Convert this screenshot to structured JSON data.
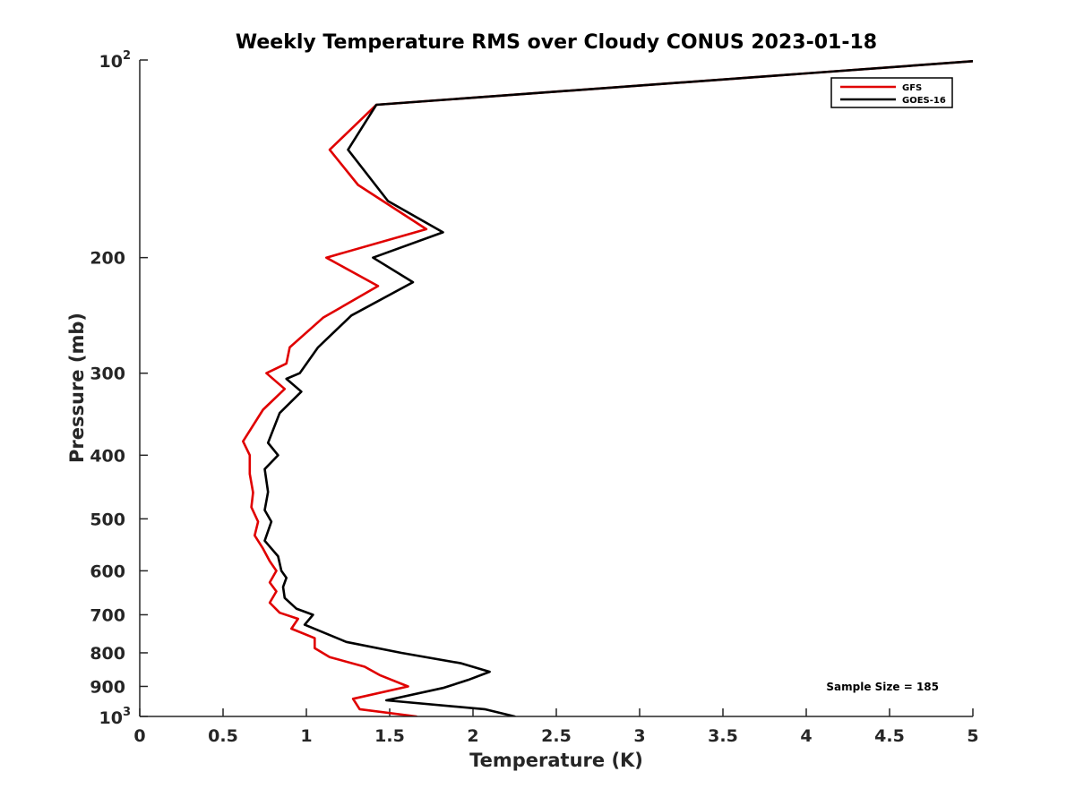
{
  "chart_data": {
    "type": "line",
    "title": "Weekly Temperature RMS over Cloudy CONUS 2023-01-18",
    "xlabel": "Temperature (K)",
    "ylabel": "Pressure (mb)",
    "xlim": [
      0,
      5
    ],
    "ylim": [
      100,
      1000
    ],
    "y_scale": "log",
    "y_reversed": true,
    "x_ticks": [
      0,
      0.5,
      1,
      1.5,
      2,
      2.5,
      3,
      3.5,
      4,
      4.5,
      5
    ],
    "x_tick_labels": [
      "0",
      "0.5",
      "1",
      "1.5",
      "2",
      "2.5",
      "3",
      "3.5",
      "4",
      "4.5",
      "5"
    ],
    "y_ticks": [
      200,
      300,
      400,
      500,
      600,
      700,
      800,
      900
    ],
    "y_tick_labels": [
      "200",
      "300",
      "400",
      "500",
      "600",
      "700",
      "800",
      "900"
    ],
    "y_end_labels": [
      {
        "value": 100,
        "base": "10",
        "exp": "2"
      },
      {
        "value": 1000,
        "base": "10",
        "exp": "3"
      }
    ],
    "grid": false,
    "legend_position": "top-right",
    "annotation": "Sample Size = 185",
    "series": [
      {
        "name": "GFS",
        "color": "#e00000",
        "points": [
          [
            5.1,
            100
          ],
          [
            1.42,
            117
          ],
          [
            1.14,
            137
          ],
          [
            1.31,
            155
          ],
          [
            1.72,
            181
          ],
          [
            1.12,
            200
          ],
          [
            1.43,
            221
          ],
          [
            1.1,
            247
          ],
          [
            0.9,
            274
          ],
          [
            0.88,
            290
          ],
          [
            0.76,
            300
          ],
          [
            0.87,
            317
          ],
          [
            0.74,
            341
          ],
          [
            0.62,
            381
          ],
          [
            0.66,
            400
          ],
          [
            0.66,
            427
          ],
          [
            0.68,
            456
          ],
          [
            0.67,
            480
          ],
          [
            0.71,
            505
          ],
          [
            0.69,
            530
          ],
          [
            0.74,
            555
          ],
          [
            0.78,
            580
          ],
          [
            0.82,
            600
          ],
          [
            0.78,
            625
          ],
          [
            0.82,
            645
          ],
          [
            0.78,
            671
          ],
          [
            0.84,
            695
          ],
          [
            0.95,
            710
          ],
          [
            0.91,
            735
          ],
          [
            1.05,
            760
          ],
          [
            1.05,
            787
          ],
          [
            1.14,
            812
          ],
          [
            1.35,
            840
          ],
          [
            1.44,
            865
          ],
          [
            1.61,
            900
          ],
          [
            1.28,
            940
          ],
          [
            1.32,
            975
          ],
          [
            1.66,
            1000
          ]
        ]
      },
      {
        "name": "GOES-16",
        "color": "#000000",
        "points": [
          [
            5.1,
            100
          ],
          [
            1.42,
            117
          ],
          [
            1.25,
            137
          ],
          [
            1.49,
            164
          ],
          [
            1.82,
            183
          ],
          [
            1.4,
            200
          ],
          [
            1.64,
            218
          ],
          [
            1.27,
            245
          ],
          [
            1.07,
            274
          ],
          [
            0.96,
            300
          ],
          [
            0.88,
            306
          ],
          [
            0.97,
            320
          ],
          [
            0.84,
            345
          ],
          [
            0.77,
            383
          ],
          [
            0.83,
            400
          ],
          [
            0.75,
            420
          ],
          [
            0.77,
            455
          ],
          [
            0.75,
            485
          ],
          [
            0.79,
            505
          ],
          [
            0.75,
            540
          ],
          [
            0.83,
            570
          ],
          [
            0.85,
            600
          ],
          [
            0.88,
            615
          ],
          [
            0.86,
            635
          ],
          [
            0.87,
            660
          ],
          [
            0.94,
            685
          ],
          [
            1.04,
            700
          ],
          [
            0.99,
            725
          ],
          [
            1.24,
            770
          ],
          [
            1.57,
            800
          ],
          [
            1.93,
            830
          ],
          [
            2.1,
            855
          ],
          [
            1.97,
            880
          ],
          [
            1.82,
            905
          ],
          [
            1.48,
            945
          ],
          [
            2.07,
            975
          ],
          [
            2.25,
            1000
          ]
        ]
      }
    ]
  }
}
